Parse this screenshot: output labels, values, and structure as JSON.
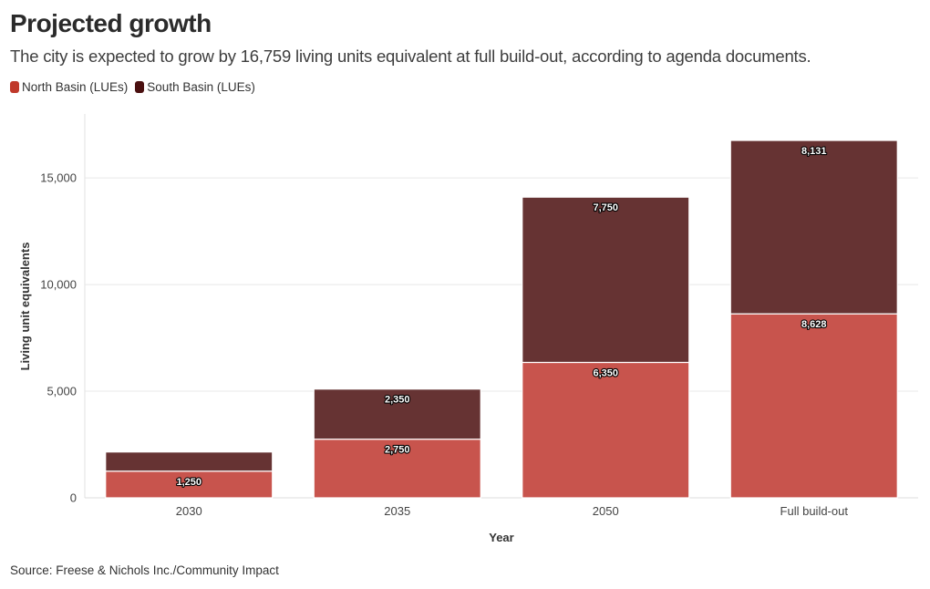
{
  "title": "Projected growth",
  "subtitle": "The city is expected to grow by 16,759 living units equivalent at full build-out, according to agenda documents.",
  "source": "Source: Freese & Nichols Inc./Community Impact",
  "colors": {
    "north": "#c8544d",
    "south": "#663333",
    "north_legend": "#c0392b",
    "south_legend": "#4a1010",
    "grid": "#e8e8e8"
  },
  "chart_data": {
    "type": "bar",
    "stacked": true,
    "title": "Projected growth",
    "xlabel": "Year",
    "ylabel": "Living unit equivalents",
    "categories": [
      "2030",
      "2035",
      "2050",
      "Full build-out"
    ],
    "ylim": [
      0,
      18000
    ],
    "yticks": [
      0,
      5000,
      10000,
      15000
    ],
    "ytick_labels": [
      "0",
      "5,000",
      "10,000",
      "15,000"
    ],
    "series": [
      {
        "name": "North Basin (LUEs)",
        "values": [
          1250,
          2750,
          6350,
          8628
        ],
        "labels": [
          "1,250",
          "2,750",
          "6,350",
          "8,628"
        ]
      },
      {
        "name": "South Basin (LUEs)",
        "values": [
          900,
          2350,
          7750,
          8131
        ],
        "labels": [
          "",
          "2,350",
          "7,750",
          "8,131"
        ]
      }
    ],
    "legend_position": "top-left"
  }
}
